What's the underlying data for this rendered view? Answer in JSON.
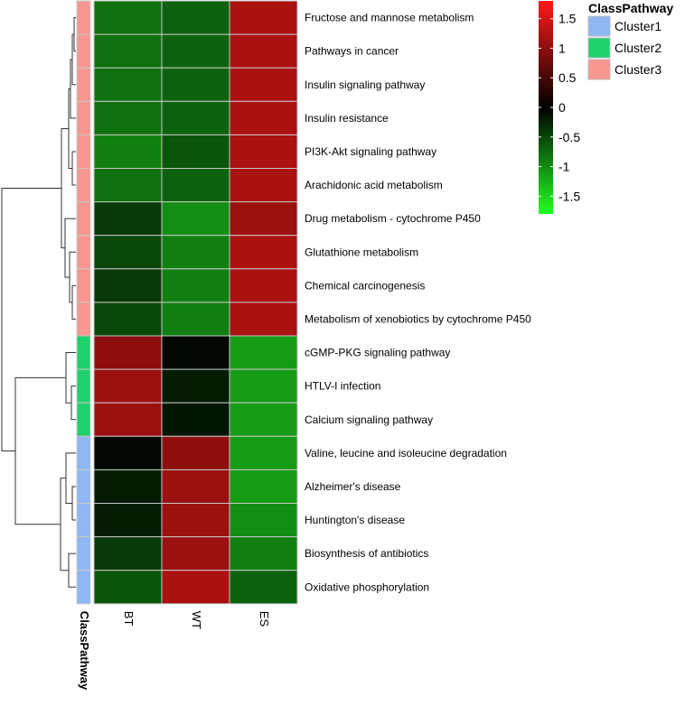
{
  "chart_data": {
    "type": "heatmap",
    "title": "",
    "columns": [
      "BT",
      "WT",
      "ES"
    ],
    "rows": [
      {
        "label": "Fructose and mannose metabolism",
        "cluster": "Cluster3",
        "values": [
          -0.8,
          -0.7,
          1.2
        ]
      },
      {
        "label": "Pathways in cancer",
        "cluster": "Cluster3",
        "values": [
          -0.8,
          -0.7,
          1.2
        ]
      },
      {
        "label": "Insulin signaling pathway",
        "cluster": "Cluster3",
        "values": [
          -0.8,
          -0.7,
          1.2
        ]
      },
      {
        "label": "Insulin resistance",
        "cluster": "Cluster3",
        "values": [
          -0.8,
          -0.7,
          1.2
        ]
      },
      {
        "label": "PI3K-Akt signaling pathway",
        "cluster": "Cluster3",
        "values": [
          -0.9,
          -0.6,
          1.2
        ]
      },
      {
        "label": "Arachidonic acid metabolism",
        "cluster": "Cluster3",
        "values": [
          -0.8,
          -0.7,
          1.2
        ]
      },
      {
        "label": "Drug metabolism - cytochrome P450",
        "cluster": "Cluster3",
        "values": [
          -0.4,
          -1.0,
          1.1
        ]
      },
      {
        "label": "Glutathione metabolism",
        "cluster": "Cluster3",
        "values": [
          -0.5,
          -0.9,
          1.2
        ]
      },
      {
        "label": "Chemical carcinogenesis",
        "cluster": "Cluster3",
        "values": [
          -0.4,
          -0.9,
          1.2
        ]
      },
      {
        "label": "Metabolism of xenobiotics by cytochrome P450",
        "cluster": "Cluster3",
        "values": [
          -0.5,
          -0.9,
          1.2
        ]
      },
      {
        "label": "cGMP-PKG signaling pathway",
        "cluster": "Cluster2",
        "values": [
          1.0,
          -0.05,
          -1.1
        ]
      },
      {
        "label": "HTLV-I infection",
        "cluster": "Cluster2",
        "values": [
          1.1,
          -0.2,
          -1.1
        ]
      },
      {
        "label": "Calcium signaling pathway",
        "cluster": "Cluster2",
        "values": [
          1.1,
          -0.15,
          -1.1
        ]
      },
      {
        "label": "Valine, leucine and isoleucine degradation",
        "cluster": "Cluster1",
        "values": [
          -0.05,
          1.0,
          -1.1
        ]
      },
      {
        "label": "Alzheimer's disease",
        "cluster": "Cluster1",
        "values": [
          -0.2,
          1.1,
          -1.1
        ]
      },
      {
        "label": "Huntington's disease",
        "cluster": "Cluster1",
        "values": [
          -0.2,
          1.1,
          -1.0
        ]
      },
      {
        "label": "Biosynthesis of antibiotics",
        "cluster": "Cluster1",
        "values": [
          -0.4,
          1.1,
          -0.9
        ]
      },
      {
        "label": "Oxidative phosphorylation",
        "cluster": "Cluster1",
        "values": [
          -0.6,
          1.2,
          -0.7
        ]
      }
    ],
    "color_scale": {
      "min": -1.8,
      "max": 1.8,
      "low": "#22ff22",
      "mid": "#000000",
      "high": "#ff1a1a",
      "ticks": [
        1.5,
        1,
        0.5,
        0,
        -0.5,
        -1,
        -1.5
      ],
      "tick_labels": [
        "1.5",
        "1",
        "0.5",
        "0",
        "-0.5",
        "-1",
        "-1.5"
      ]
    },
    "annotation": {
      "title": "ClassPathway",
      "axis_label": "ClassPathway",
      "legend": [
        {
          "name": "Cluster1",
          "color": "#8fb7f4"
        },
        {
          "name": "Cluster2",
          "color": "#1fd16c"
        },
        {
          "name": "Cluster3",
          "color": "#f8978f"
        }
      ]
    },
    "row_dendrogram": true
  }
}
